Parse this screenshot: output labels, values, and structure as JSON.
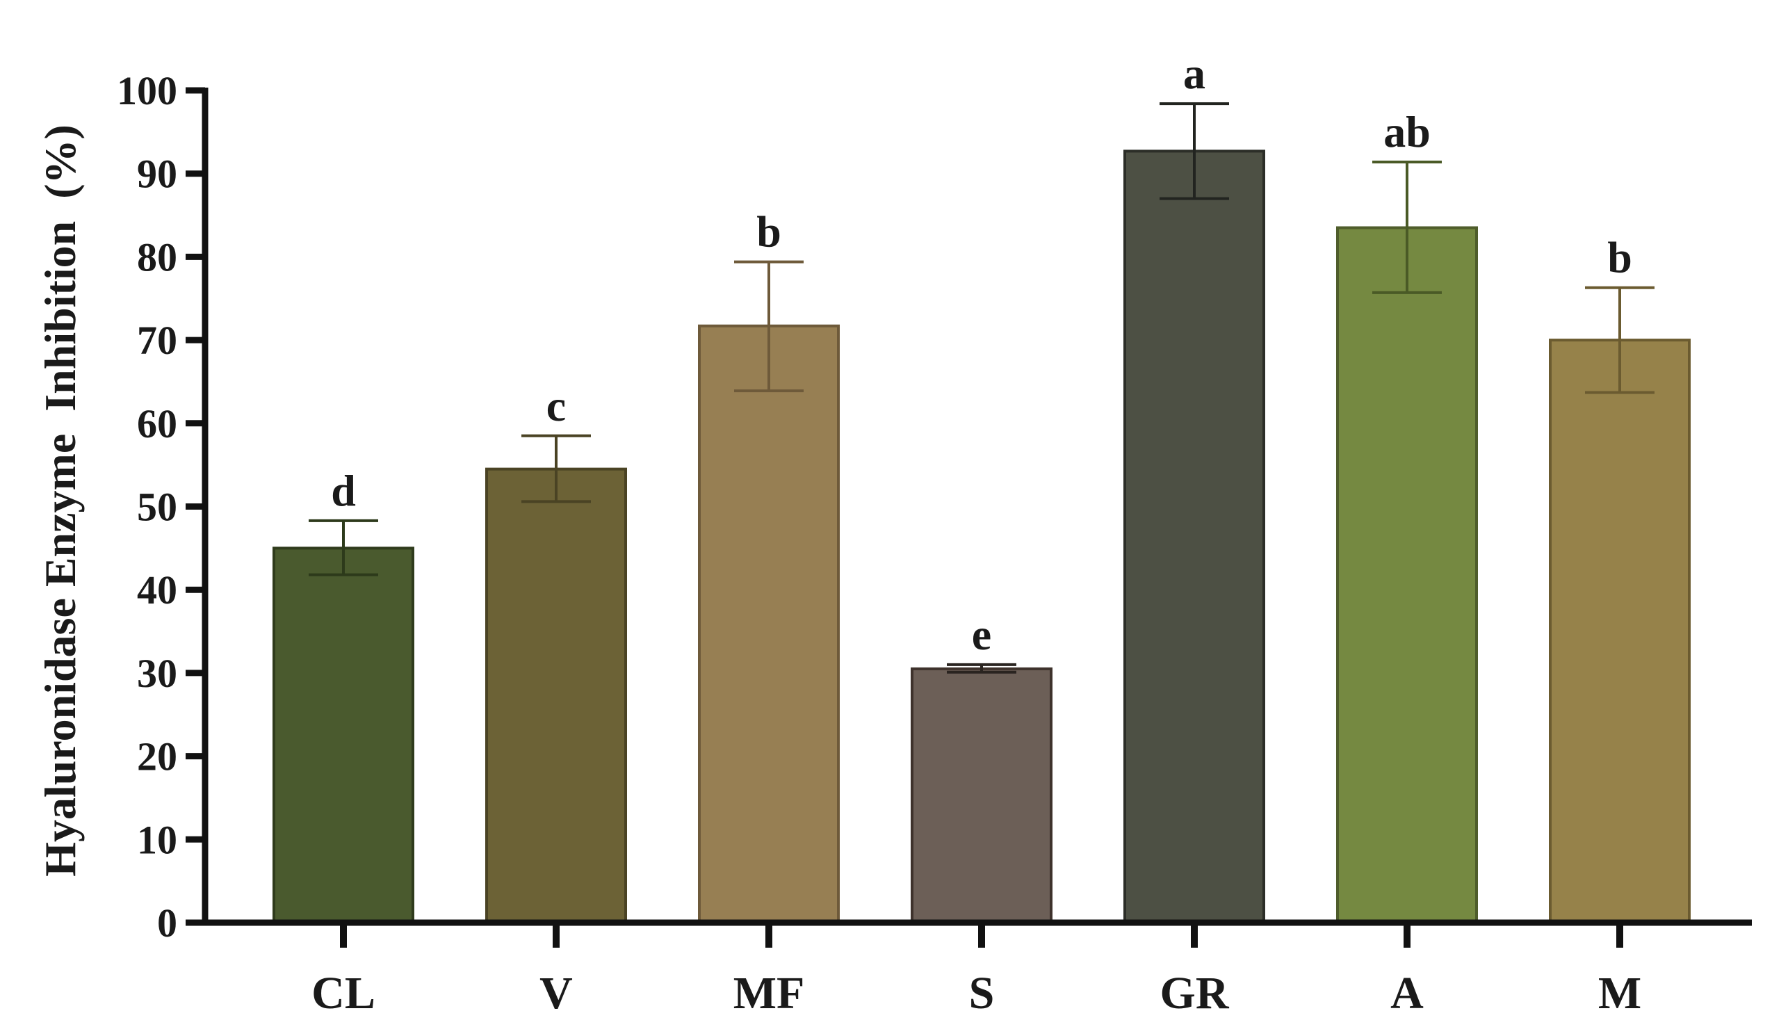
{
  "chart_data": {
    "type": "bar",
    "title": "",
    "xlabel": "",
    "ylabel": "Hyaluronidase Enzyme  Inhibition  (%)",
    "ylim": [
      0,
      100
    ],
    "yticks": [
      0,
      10,
      20,
      30,
      40,
      50,
      60,
      70,
      80,
      90,
      100
    ],
    "grid": false,
    "categories": [
      "CL",
      "V",
      "MF",
      "S",
      "GR",
      "A",
      "M"
    ],
    "values": [
      45,
      54.5,
      71.7,
      30.5,
      92.7,
      83.5,
      70
    ],
    "error_lower": [
      41.8,
      50.6,
      63.9,
      30.1,
      87,
      75.7,
      63.7
    ],
    "error_upper": [
      48.3,
      58.5,
      79.4,
      31,
      98.4,
      91.4,
      76.3
    ],
    "significance_labels": [
      "d",
      "c",
      "b",
      "e",
      "a",
      "ab",
      "b"
    ],
    "colors": {
      "fills": [
        "#4a5a2e",
        "#6c6236",
        "#977f53",
        "#6c5f57",
        "#4d5044",
        "#758941",
        "#96824a"
      ],
      "strokes": [
        "#2f3b1c",
        "#4a4324",
        "#6e5a3a",
        "#3e322c",
        "#2c2e28",
        "#4f5d2b",
        "#6b5b30"
      ],
      "error_bars": [
        "#2d3a1b",
        "#4a4324",
        "#6e5a3a",
        "#2a2420",
        "#222420",
        "#4a5a26",
        "#6b5b30"
      ],
      "axis": "#111111"
    }
  }
}
